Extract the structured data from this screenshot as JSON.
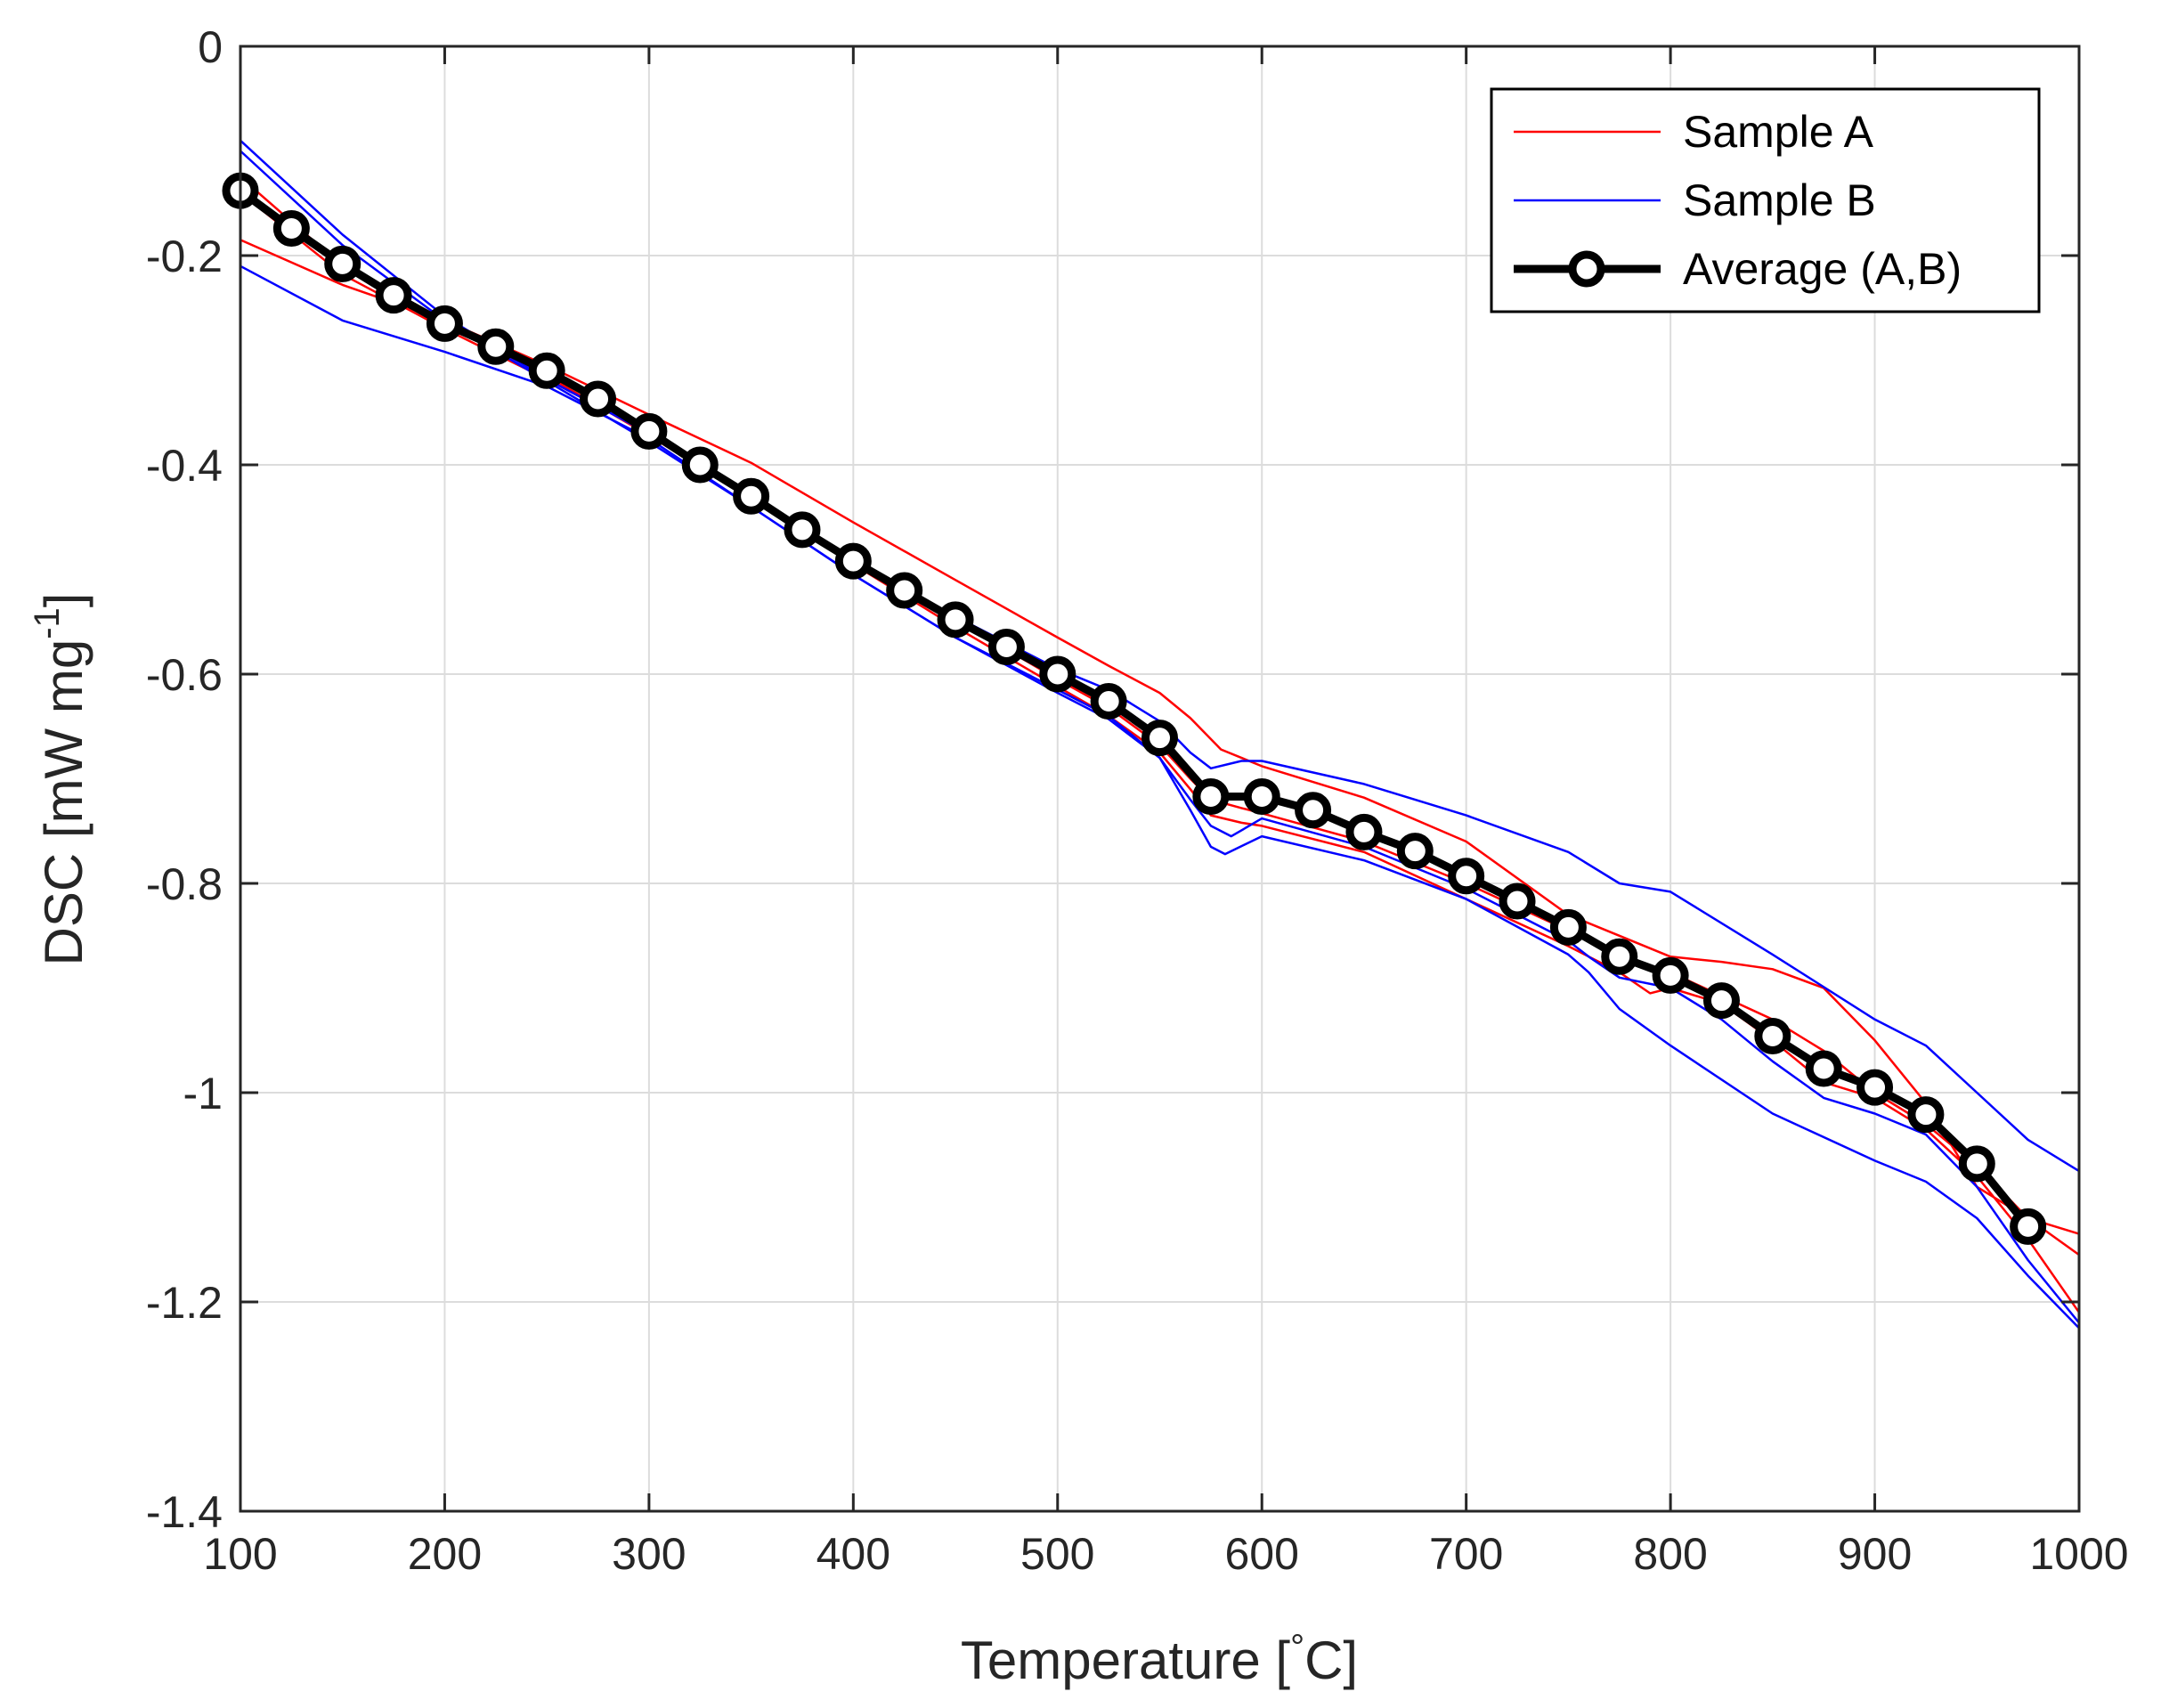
{
  "chart_data": {
    "type": "line",
    "title": "",
    "xlabel_main": "Temperature [",
    "xlabel_deg": "°",
    "xlabel_unit": "C]",
    "ylabel_main": "DSC [mW mg",
    "ylabel_sup": "-1",
    "ylabel_close": "]",
    "xlim": [
      100,
      1000
    ],
    "ylim": [
      -1.4,
      0
    ],
    "xticks": [
      100,
      200,
      300,
      400,
      500,
      600,
      700,
      800,
      900,
      1000
    ],
    "yticks": [
      0,
      -0.2,
      -0.4,
      -0.6,
      -0.8,
      -1,
      -1.2,
      -1.4
    ],
    "xtick_labels": [
      "100",
      "200",
      "300",
      "400",
      "500",
      "600",
      "700",
      "800",
      "900",
      "1000"
    ],
    "ytick_labels": [
      "0",
      "-0.2",
      "-0.4",
      "-0.6",
      "-0.8",
      "-1",
      "-1.2",
      "-1.4"
    ],
    "grid": true,
    "legend_position": "top-right",
    "legend": [
      "Sample A",
      "Sample B",
      "Average (A,B)"
    ],
    "colors": {
      "sample_a": "#ff0000",
      "sample_b": "#0000ff",
      "average": "#000000",
      "grid": "#dcdcdc",
      "axis": "#262626"
    },
    "series": [
      {
        "name": "Sample A",
        "color": "#ff0000",
        "runs": [
          {
            "x": [
              100,
              150,
              200,
              250,
              300,
              350,
              400,
              450,
              500,
              525,
              550,
              565,
              580,
              600,
              650,
              700,
              750,
              800,
              825,
              850,
              875,
              900,
              925,
              950,
              975,
              1000
            ],
            "y": [
              -0.185,
              -0.228,
              -0.262,
              -0.305,
              -0.352,
              -0.398,
              -0.455,
              -0.51,
              -0.565,
              -0.592,
              -0.618,
              -0.642,
              -0.672,
              -0.688,
              -0.718,
              -0.76,
              -0.83,
              -0.87,
              -0.875,
              -0.882,
              -0.9,
              -0.95,
              -1.01,
              -1.09,
              -1.12,
              -1.135
            ]
          },
          {
            "x": [
              100,
              150,
              200,
              250,
              300,
              350,
              400,
              450,
              500,
              525,
              550,
              565,
              575,
              590,
              600,
              650,
              700,
              750,
              780,
              800,
              850,
              875,
              900,
              925,
              950,
              975,
              1000
            ],
            "y": [
              -0.14,
              -0.218,
              -0.27,
              -0.318,
              -0.37,
              -0.43,
              -0.49,
              -0.548,
              -0.605,
              -0.632,
              -0.668,
              -0.7,
              -0.72,
              -0.728,
              -0.733,
              -0.76,
              -0.8,
              -0.845,
              -0.872,
              -0.885,
              -0.93,
              -0.96,
              -1.0,
              -1.03,
              -1.07,
              -1.12,
              -1.155
            ]
          },
          {
            "x": [
              100,
              150,
              200,
              250,
              300,
              350,
              400,
              450,
              500,
              525,
              550,
              565,
              575,
              590,
              600,
              650,
              700,
              750,
              775,
              790,
              800,
              825,
              850,
              875,
              900,
              925,
              950,
              975,
              1000
            ],
            "y": [
              -0.125,
              -0.21,
              -0.265,
              -0.315,
              -0.372,
              -0.432,
              -0.495,
              -0.555,
              -0.612,
              -0.64,
              -0.675,
              -0.71,
              -0.735,
              -0.742,
              -0.745,
              -0.77,
              -0.815,
              -0.86,
              -0.885,
              -0.905,
              -0.9,
              -0.915,
              -0.95,
              -0.99,
              -1.005,
              -1.035,
              -1.08,
              -1.14,
              -1.21
            ]
          }
        ]
      },
      {
        "name": "Sample B",
        "color": "#0000ff",
        "runs": [
          {
            "x": [
              100,
              150,
              200,
              250,
              300,
              350,
              400,
              450,
              500,
              525,
              550,
              565,
              575,
              590,
              600,
              650,
              700,
              750,
              775,
              800,
              850,
              900,
              925,
              950,
              975,
              1000
            ],
            "y": [
              -0.09,
              -0.18,
              -0.258,
              -0.318,
              -0.37,
              -0.43,
              -0.49,
              -0.545,
              -0.595,
              -0.615,
              -0.645,
              -0.675,
              -0.69,
              -0.683,
              -0.683,
              -0.705,
              -0.735,
              -0.77,
              -0.8,
              -0.808,
              -0.868,
              -0.93,
              -0.955,
              -1.0,
              -1.045,
              -1.075
            ]
          },
          {
            "x": [
              100,
              150,
              200,
              250,
              300,
              350,
              400,
              450,
              500,
              525,
              550,
              565,
              575,
              582,
              600,
              650,
              700,
              750,
              760,
              775,
              800,
              850,
              900,
              925,
              950,
              975,
              1000
            ],
            "y": [
              -0.1,
              -0.19,
              -0.262,
              -0.32,
              -0.378,
              -0.44,
              -0.505,
              -0.565,
              -0.615,
              -0.64,
              -0.68,
              -0.73,
              -0.765,
              -0.772,
              -0.755,
              -0.778,
              -0.815,
              -0.868,
              -0.885,
              -0.92,
              -0.955,
              -1.02,
              -1.065,
              -1.085,
              -1.12,
              -1.175,
              -1.225
            ]
          },
          {
            "x": [
              100,
              150,
              200,
              250,
              300,
              350,
              400,
              450,
              500,
              525,
              550,
              565,
              575,
              585,
              600,
              650,
              700,
              750,
              760,
              775,
              800,
              825,
              850,
              875,
              900,
              925,
              950,
              975,
              1000
            ],
            "y": [
              -0.21,
              -0.262,
              -0.292,
              -0.325,
              -0.375,
              -0.44,
              -0.505,
              -0.565,
              -0.618,
              -0.643,
              -0.68,
              -0.72,
              -0.745,
              -0.755,
              -0.738,
              -0.765,
              -0.805,
              -0.855,
              -0.87,
              -0.89,
              -0.9,
              -0.93,
              -0.97,
              -1.005,
              -1.02,
              -1.04,
              -1.09,
              -1.16,
              -1.22
            ]
          }
        ]
      },
      {
        "name": "Average (A,B)",
        "color": "#000000",
        "markers": true,
        "x": [
          100,
          125,
          150,
          175,
          200,
          225,
          250,
          275,
          300,
          325,
          350,
          375,
          400,
          425,
          450,
          475,
          500,
          525,
          550,
          575,
          600,
          625,
          650,
          675,
          700,
          725,
          750,
          775,
          800,
          825,
          850,
          875,
          900,
          925,
          950,
          975
        ],
        "y": [
          -0.138,
          -0.174,
          -0.208,
          -0.238,
          -0.265,
          -0.287,
          -0.31,
          -0.337,
          -0.368,
          -0.4,
          -0.43,
          -0.462,
          -0.492,
          -0.52,
          -0.548,
          -0.574,
          -0.6,
          -0.626,
          -0.661,
          -0.717,
          -0.717,
          -0.73,
          -0.751,
          -0.769,
          -0.793,
          -0.817,
          -0.842,
          -0.87,
          -0.888,
          -0.912,
          -0.946,
          -0.977,
          -0.995,
          -1.021,
          -1.068,
          -1.128
        ]
      }
    ]
  }
}
